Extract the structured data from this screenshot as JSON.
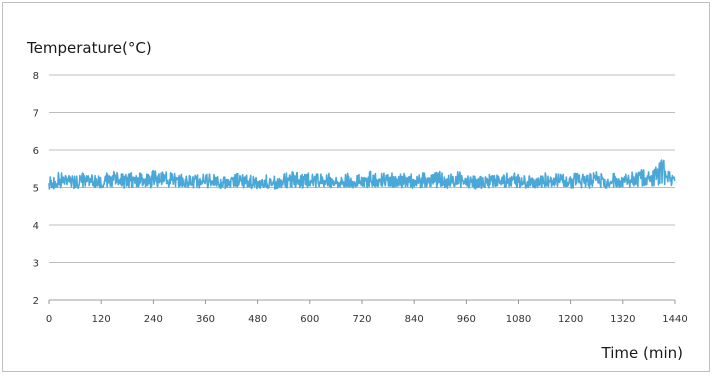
{
  "chart_data": {
    "type": "line",
    "title": "",
    "ylabel": "Temperature(°C)",
    "xlabel": "Time (min)",
    "xlim": [
      0,
      1440
    ],
    "ylim": [
      2,
      8
    ],
    "x_ticks": [
      0,
      120,
      240,
      360,
      480,
      600,
      720,
      840,
      960,
      1080,
      1200,
      1320,
      1440
    ],
    "y_ticks": [
      2,
      3,
      4,
      5,
      6,
      7,
      8
    ],
    "grid": "horizontal",
    "legend": "none",
    "series": [
      {
        "color": "#4aa8d8",
        "x": [
          0,
          20,
          40,
          60,
          80,
          100,
          120,
          140,
          160,
          180,
          200,
          220,
          240,
          260,
          280,
          300,
          320,
          340,
          360,
          380,
          400,
          420,
          440,
          460,
          480,
          500,
          520,
          540,
          560,
          580,
          600,
          620,
          640,
          660,
          680,
          700,
          720,
          740,
          760,
          780,
          800,
          820,
          840,
          860,
          880,
          900,
          920,
          940,
          960,
          980,
          1000,
          1020,
          1040,
          1060,
          1080,
          1100,
          1120,
          1140,
          1160,
          1180,
          1200,
          1220,
          1240,
          1260,
          1280,
          1300,
          1320,
          1340,
          1360,
          1380,
          1400,
          1410,
          1420,
          1440
        ],
        "y": [
          5.1,
          5.15,
          5.2,
          5.1,
          5.2,
          5.15,
          5.1,
          5.25,
          5.2,
          5.15,
          5.2,
          5.15,
          5.2,
          5.25,
          5.2,
          5.15,
          5.2,
          5.15,
          5.2,
          5.15,
          5.1,
          5.15,
          5.2,
          5.15,
          5.1,
          5.15,
          5.1,
          5.15,
          5.2,
          5.15,
          5.2,
          5.15,
          5.2,
          5.15,
          5.2,
          5.15,
          5.15,
          5.2,
          5.15,
          5.2,
          5.15,
          5.2,
          5.15,
          5.2,
          5.15,
          5.2,
          5.15,
          5.2,
          5.15,
          5.1,
          5.15,
          5.2,
          5.15,
          5.2,
          5.15,
          5.1,
          5.15,
          5.2,
          5.15,
          5.2,
          5.15,
          5.2,
          5.15,
          5.2,
          5.15,
          5.2,
          5.15,
          5.2,
          5.25,
          5.2,
          5.4,
          5.7,
          5.3,
          5.2
        ],
        "min_band": [
          4.95,
          4.98,
          5.0,
          4.97,
          5.0,
          4.98,
          4.96,
          5.0,
          5.0,
          4.98,
          5.0,
          4.98,
          5.0,
          5.02,
          5.0,
          4.98,
          5.0,
          4.97,
          5.0,
          4.98,
          4.96,
          4.98,
          5.0,
          4.98,
          4.96,
          4.98,
          4.96,
          4.98,
          5.0,
          4.98,
          5.0,
          4.98,
          5.0,
          4.98,
          5.0,
          4.98,
          4.98,
          5.0,
          4.98,
          5.0,
          4.98,
          5.0,
          4.98,
          5.0,
          4.98,
          5.0,
          4.98,
          5.0,
          4.98,
          4.96,
          4.98,
          5.0,
          4.98,
          5.0,
          4.98,
          4.96,
          4.98,
          5.0,
          4.98,
          5.0,
          4.98,
          5.0,
          4.98,
          5.0,
          4.98,
          5.0,
          4.98,
          5.0,
          5.02,
          5.0,
          5.05,
          5.1,
          5.05,
          5.0
        ],
        "max_band": [
          5.3,
          5.45,
          5.35,
          5.3,
          5.4,
          5.35,
          5.3,
          5.45,
          5.4,
          5.35,
          5.45,
          5.35,
          5.45,
          5.5,
          5.4,
          5.35,
          5.4,
          5.35,
          5.4,
          5.35,
          5.3,
          5.35,
          5.4,
          5.35,
          5.3,
          5.35,
          5.3,
          5.4,
          5.45,
          5.35,
          5.4,
          5.35,
          5.4,
          5.35,
          5.45,
          5.35,
          5.35,
          5.45,
          5.35,
          5.45,
          5.35,
          5.4,
          5.35,
          5.4,
          5.35,
          5.45,
          5.35,
          5.45,
          5.35,
          5.3,
          5.35,
          5.4,
          5.35,
          5.45,
          5.35,
          5.3,
          5.35,
          5.4,
          5.35,
          5.4,
          5.35,
          5.4,
          5.35,
          5.45,
          5.35,
          5.4,
          5.35,
          5.45,
          5.5,
          5.45,
          5.6,
          5.75,
          5.5,
          5.3
        ]
      }
    ]
  }
}
